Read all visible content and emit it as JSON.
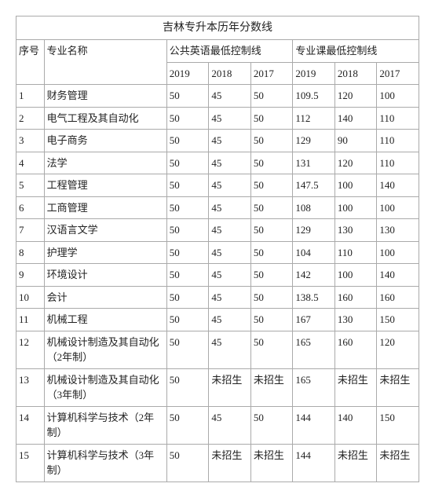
{
  "table": {
    "title": "吉林专升本历年分数线",
    "headers": {
      "idx": "序号",
      "name": "专业名称",
      "english": "公共英语最低控制线",
      "major": "专业课最低控制线",
      "years": [
        "2019",
        "2018",
        "2017"
      ]
    },
    "rows": [
      {
        "idx": "1",
        "name": "财务管理",
        "eng": [
          "50",
          "45",
          "50"
        ],
        "maj": [
          "109.5",
          "120",
          "100"
        ]
      },
      {
        "idx": "2",
        "name": "电气工程及其自动化",
        "eng": [
          "50",
          "45",
          "50"
        ],
        "maj": [
          "112",
          "140",
          "110"
        ]
      },
      {
        "idx": "3",
        "name": "电子商务",
        "eng": [
          "50",
          "45",
          "50"
        ],
        "maj": [
          "129",
          "90",
          "110"
        ]
      },
      {
        "idx": "4",
        "name": "法学",
        "eng": [
          "50",
          "45",
          "50"
        ],
        "maj": [
          "131",
          "120",
          "110"
        ]
      },
      {
        "idx": "5",
        "name": "工程管理",
        "eng": [
          "50",
          "45",
          "50"
        ],
        "maj": [
          "147.5",
          "100",
          "140"
        ]
      },
      {
        "idx": "6",
        "name": "工商管理",
        "eng": [
          "50",
          "45",
          "50"
        ],
        "maj": [
          "108",
          "100",
          "100"
        ]
      },
      {
        "idx": "7",
        "name": "汉语言文学",
        "eng": [
          "50",
          "45",
          "50"
        ],
        "maj": [
          "129",
          "130",
          "130"
        ]
      },
      {
        "idx": "8",
        "name": "护理学",
        "eng": [
          "50",
          "45",
          "50"
        ],
        "maj": [
          "104",
          "110",
          "100"
        ]
      },
      {
        "idx": "9",
        "name": "环境设计",
        "eng": [
          "50",
          "45",
          "50"
        ],
        "maj": [
          "142",
          "100",
          "140"
        ]
      },
      {
        "idx": "10",
        "name": "会计",
        "eng": [
          "50",
          "45",
          "50"
        ],
        "maj": [
          "138.5",
          "160",
          "160"
        ]
      },
      {
        "idx": "11",
        "name": "机械工程",
        "eng": [
          "50",
          "45",
          "50"
        ],
        "maj": [
          "167",
          "130",
          "150"
        ]
      },
      {
        "idx": "12",
        "name": "机械设计制造及其自动化（2年制）",
        "eng": [
          "50",
          "45",
          "50"
        ],
        "maj": [
          "165",
          "160",
          "120"
        ]
      },
      {
        "idx": "13",
        "name": "机械设计制造及其自动化（3年制）",
        "eng": [
          "50",
          "未招生",
          "未招生"
        ],
        "maj": [
          "165",
          "未招生",
          "未招生"
        ]
      },
      {
        "idx": "14",
        "name": "计算机科学与技术（2年制）",
        "eng": [
          "50",
          "45",
          "50"
        ],
        "maj": [
          "144",
          "140",
          "150"
        ]
      },
      {
        "idx": "15",
        "name": "计算机科学与技术（3年制）",
        "eng": [
          "50",
          "未招生",
          "未招生"
        ],
        "maj": [
          "144",
          "未招生",
          "未招生"
        ]
      }
    ],
    "styling": {
      "border_color": "#aaaaaa",
      "text_color": "#222222",
      "background_color": "#ffffff",
      "font_family": "SimSun",
      "title_fontsize": 14,
      "cell_fontsize": 13,
      "col_widths": {
        "idx": 32,
        "name": 140,
        "year": 48
      }
    }
  }
}
